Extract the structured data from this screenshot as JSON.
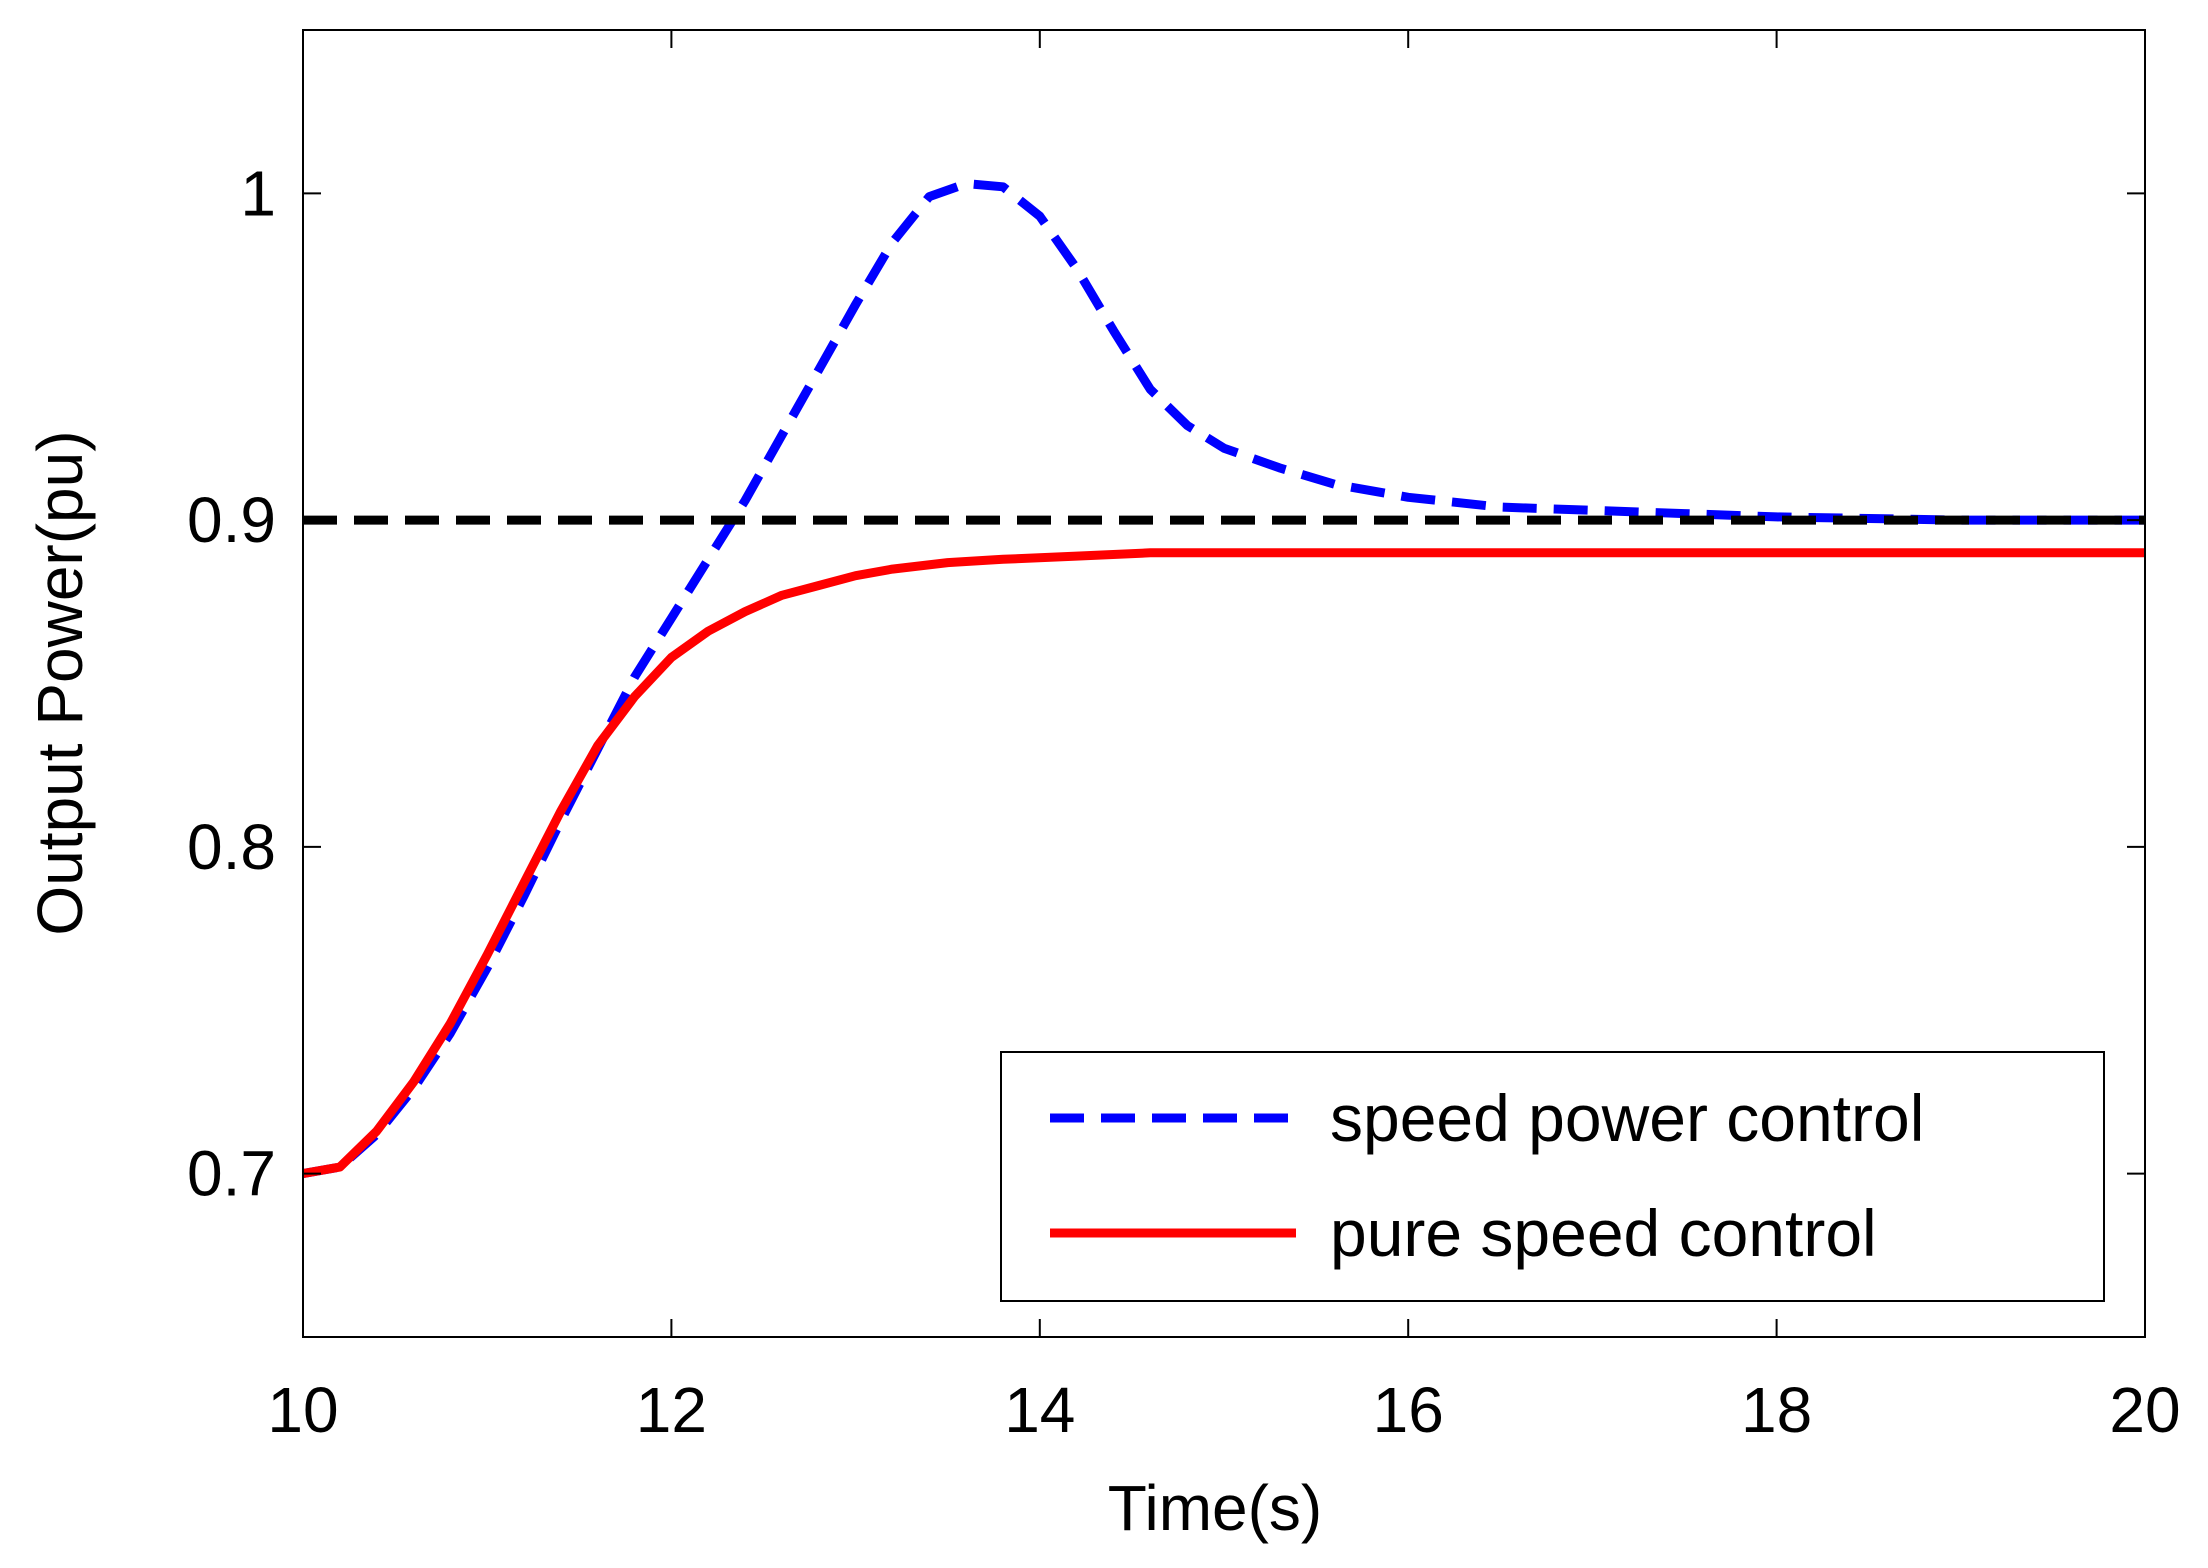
{
  "chart_data": {
    "type": "line",
    "title": "",
    "xlabel": "Time(s)",
    "ylabel": "Output Power(pu)",
    "xlim": [
      10,
      20
    ],
    "ylim": [
      0.65,
      1.05
    ],
    "x_ticks": [
      10,
      12,
      14,
      16,
      18,
      20
    ],
    "x_tick_labels": [
      "10",
      "12",
      "14",
      "16",
      "18",
      "20"
    ],
    "y_ticks": [
      0.7,
      0.8,
      0.9,
      1.0
    ],
    "y_tick_labels": [
      "0.7",
      "0.8",
      "0.9",
      "1"
    ],
    "grid": false,
    "legend_position": "bottom-right",
    "reference_line": {
      "y": 0.9,
      "color": "#000000",
      "style": "dashed"
    },
    "series": [
      {
        "name": "speed power control",
        "color": "#0000ff",
        "style": "dashed",
        "x": [
          10.0,
          10.2,
          10.4,
          10.6,
          10.8,
          11.0,
          11.2,
          11.4,
          11.6,
          11.8,
          12.0,
          12.2,
          12.4,
          12.6,
          12.8,
          13.0,
          13.2,
          13.4,
          13.6,
          13.8,
          14.0,
          14.2,
          14.4,
          14.6,
          14.8,
          15.0,
          15.3,
          15.6,
          16.0,
          16.5,
          17.0,
          17.5,
          18.0,
          18.5,
          19.0,
          19.5,
          20.0
        ],
        "y": [
          0.7,
          0.702,
          0.712,
          0.726,
          0.743,
          0.763,
          0.785,
          0.808,
          0.83,
          0.852,
          0.87,
          0.888,
          0.906,
          0.926,
          0.946,
          0.966,
          0.985,
          0.999,
          1.003,
          1.002,
          0.993,
          0.977,
          0.958,
          0.94,
          0.929,
          0.922,
          0.916,
          0.911,
          0.907,
          0.904,
          0.903,
          0.902,
          0.901,
          0.9005,
          0.9,
          0.9,
          0.9
        ]
      },
      {
        "name": "pure speed control",
        "color": "#ff0000",
        "style": "solid",
        "x": [
          10.0,
          10.2,
          10.4,
          10.6,
          10.8,
          11.0,
          11.2,
          11.4,
          11.6,
          11.8,
          12.0,
          12.2,
          12.4,
          12.6,
          12.8,
          13.0,
          13.2,
          13.5,
          13.8,
          14.2,
          14.6,
          15.0,
          16.0,
          17.0,
          18.0,
          19.0,
          20.0
        ],
        "y": [
          0.7,
          0.702,
          0.713,
          0.728,
          0.746,
          0.767,
          0.789,
          0.811,
          0.831,
          0.846,
          0.858,
          0.866,
          0.872,
          0.877,
          0.88,
          0.883,
          0.885,
          0.887,
          0.888,
          0.889,
          0.89,
          0.89,
          0.89,
          0.89,
          0.89,
          0.89,
          0.89
        ]
      }
    ]
  }
}
